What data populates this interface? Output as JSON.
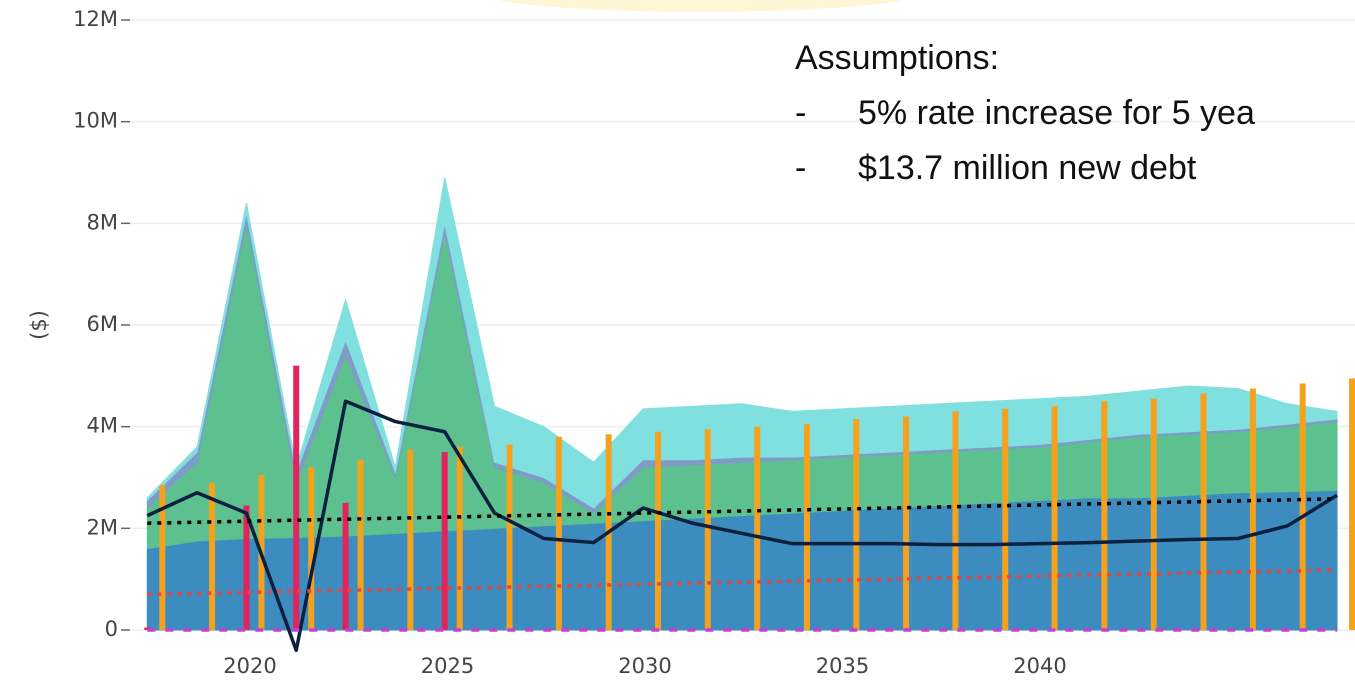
{
  "chart_data": {
    "type": "area",
    "y_axis_label": "($)",
    "annotations": [
      "Assumptions:",
      "-",
      "5% rate increase for 5 yea",
      "-",
      "$13.7 million new debt"
    ],
    "x": [
      2017.4,
      2018.66,
      2019.91,
      2021.17,
      2022.42,
      2023.68,
      2024.93,
      2026.19,
      2027.44,
      2028.7,
      2029.95,
      2031.21,
      2032.46,
      2033.72,
      2034.97,
      2036.23,
      2037.48,
      2038.74,
      2039.99,
      2041.25,
      2042.5,
      2043.76,
      2045.01,
      2046.27,
      2047.52
    ],
    "xlim": [
      2017,
      2048
    ],
    "xticks": [
      2020,
      2025,
      2030,
      2035,
      2040
    ],
    "ylim": [
      0,
      12000000
    ],
    "yticks": [
      0,
      {
        "value": 2000000,
        "label": "2M"
      },
      {
        "value": 4000000,
        "label": "4M"
      },
      {
        "value": 6000000,
        "label": "6M"
      },
      {
        "value": 8000000,
        "label": "8M"
      },
      {
        "value": 10000000,
        "label": "10M"
      },
      {
        "value": 12000000,
        "label": "12M"
      }
    ],
    "grid": true,
    "series": [
      {
        "type": "area",
        "color": "#3d8cbf",
        "values": [
          1600000,
          1750000,
          1800000,
          1820000,
          1850000,
          1900000,
          1950000,
          2000000,
          2050000,
          2100000,
          2150000,
          2200000,
          2250000,
          2300000,
          2350000,
          2400000,
          2450000,
          2500000,
          2550000,
          2600000,
          2600000,
          2650000,
          2700000,
          2720000,
          2750000
        ]
      },
      {
        "type": "area",
        "color": "#5cc08f",
        "values": [
          800000,
          1550000,
          6200000,
          1080000,
          3550000,
          1100000,
          5850000,
          1200000,
          850000,
          200000,
          1050000,
          1050000,
          1050000,
          1050000,
          1050000,
          1050000,
          1050000,
          1050000,
          1050000,
          1100000,
          1200000,
          1200000,
          1200000,
          1280000,
          1350000
        ]
      },
      {
        "type": "area",
        "color": "#7f9cc8",
        "values": [
          150000,
          200000,
          200000,
          200000,
          300000,
          100000,
          200000,
          100000,
          100000,
          100000,
          150000,
          100000,
          100000,
          50000,
          50000,
          50000,
          50000,
          50000,
          50000,
          50000,
          50000,
          50000,
          50000,
          50000,
          50000
        ]
      },
      {
        "type": "area",
        "color": "#80dfdf",
        "values": [
          50000,
          100000,
          200000,
          100000,
          800000,
          100000,
          900000,
          1100000,
          1000000,
          900000,
          1000000,
          1050000,
          1050000,
          900000,
          900000,
          900000,
          900000,
          900000,
          900000,
          850000,
          850000,
          900000,
          800000,
          400000,
          150000
        ]
      },
      {
        "type": "bar",
        "color": "#e2245d",
        "values": [
          50000,
          null,
          2450000,
          5200000,
          2500000,
          null,
          3500000,
          null,
          null,
          null,
          null,
          null,
          null,
          null,
          null,
          null,
          null,
          null,
          null,
          null,
          null,
          null,
          null,
          null,
          null
        ]
      },
      {
        "type": "bar",
        "color": "#f4a21e",
        "values": [
          2850000,
          2900000,
          3050000,
          3200000,
          3350000,
          3550000,
          3600000,
          3650000,
          3800000,
          3850000,
          3900000,
          3950000,
          4000000,
          4050000,
          4150000,
          4200000,
          4300000,
          4350000,
          4400000,
          4500000,
          4550000,
          4650000,
          4750000,
          4850000,
          4950000
        ]
      },
      {
        "type": "line",
        "color": "#0b1f3f",
        "dash": "solid",
        "values": [
          2250000,
          2700000,
          2300000,
          -400000,
          4500000,
          4100000,
          3900000,
          2300000,
          1800000,
          1720000,
          2400000,
          2100000,
          1900000,
          1700000,
          1700000,
          1700000,
          1680000,
          1680000,
          1700000,
          1720000,
          1750000,
          1780000,
          1800000,
          2050000,
          2650000
        ]
      },
      {
        "type": "line",
        "color": "#000000",
        "dash": "dot",
        "values": [
          2100000,
          2120000,
          2140000,
          2160000,
          2180000,
          2200000,
          2220000,
          2240000,
          2260000,
          2280000,
          2300000,
          2320000,
          2340000,
          2360000,
          2380000,
          2400000,
          2420000,
          2440000,
          2460000,
          2480000,
          2500000,
          2520000,
          2540000,
          2560000,
          2580000
        ]
      },
      {
        "type": "line",
        "color": "#e8453c",
        "dash": "dot",
        "values": [
          700000,
          720000,
          740000,
          760000,
          780000,
          800000,
          820000,
          840000,
          860000,
          880000,
          900000,
          920000,
          940000,
          960000,
          980000,
          1000000,
          1020000,
          1040000,
          1060000,
          1080000,
          1100000,
          1120000,
          1140000,
          1160000,
          1180000
        ]
      },
      {
        "type": "line",
        "color": "#c43fd6",
        "dash": "dash",
        "values": [
          0,
          0,
          0,
          0,
          0,
          0,
          0,
          0,
          0,
          0,
          0,
          0,
          0,
          0,
          0,
          0,
          0,
          0,
          0,
          0,
          0,
          0,
          0,
          0,
          0
        ]
      }
    ]
  }
}
